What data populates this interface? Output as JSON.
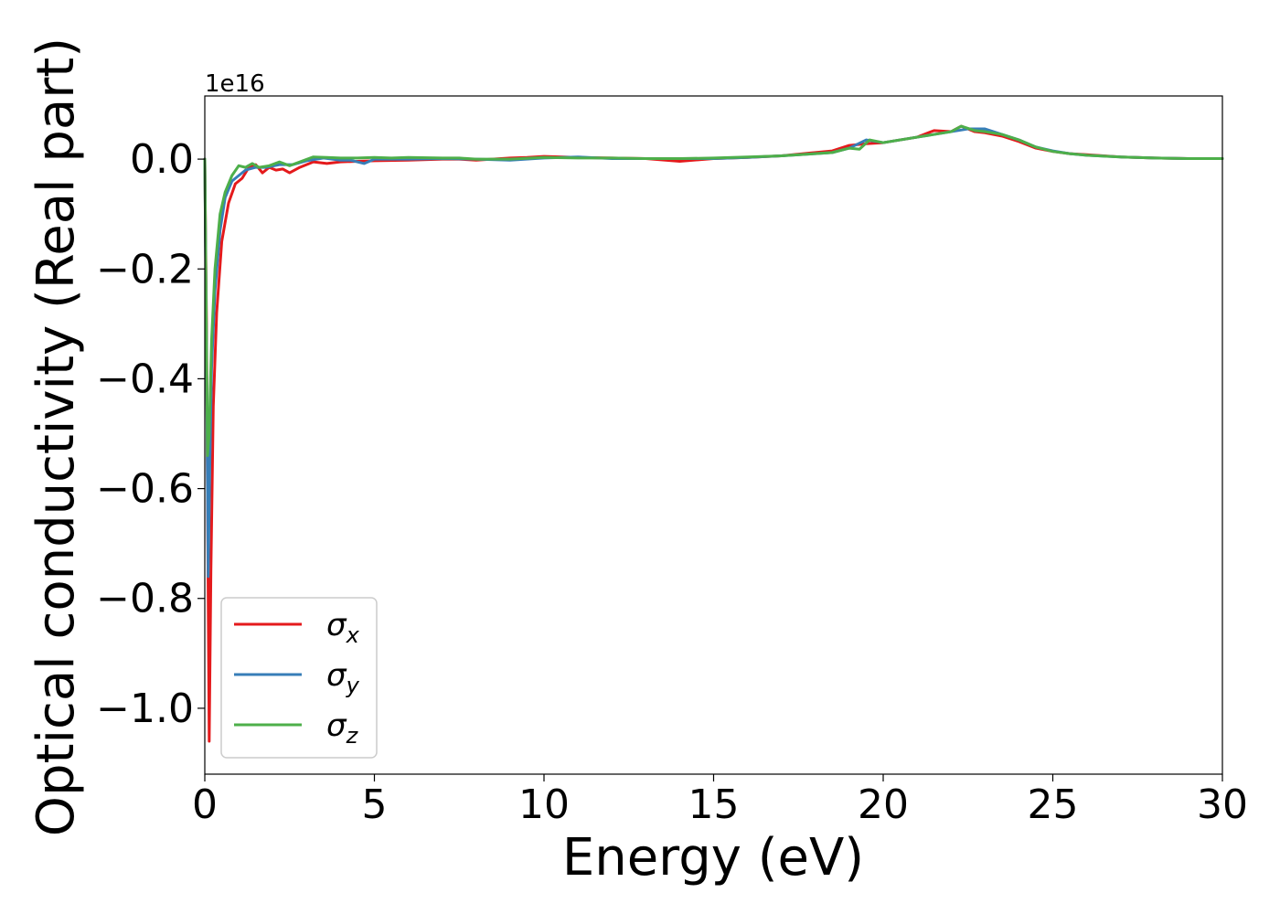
{
  "chart_data": {
    "type": "line",
    "xlabel": "Energy (eV)",
    "ylabel": "Optical conductivity (Real part)",
    "y_offset_label": "1e16",
    "xlim": [
      0,
      30
    ],
    "ylim": [
      -1.12,
      0.115
    ],
    "x_ticks": [
      0,
      5,
      10,
      15,
      20,
      25,
      30
    ],
    "x_tick_labels": [
      "0",
      "5",
      "10",
      "15",
      "20",
      "25",
      "30"
    ],
    "y_ticks": [
      0.0,
      -0.2,
      -0.4,
      -0.6,
      -0.8,
      -1.0
    ],
    "y_tick_labels": [
      "0.0",
      "−0.2",
      "−0.4",
      "−0.6",
      "−0.8",
      "−1.0"
    ],
    "grid": false,
    "legend_position": "lower-left",
    "series": [
      {
        "name": "σx",
        "name_symbol": "σ",
        "name_subscript": "x",
        "color": "#e41a1c",
        "points": [
          [
            0,
            0
          ],
          [
            0.05,
            -0.3
          ],
          [
            0.1,
            -0.8
          ],
          [
            0.13,
            -1.06
          ],
          [
            0.18,
            -0.75
          ],
          [
            0.25,
            -0.45
          ],
          [
            0.35,
            -0.28
          ],
          [
            0.5,
            -0.15
          ],
          [
            0.7,
            -0.08
          ],
          [
            0.9,
            -0.045
          ],
          [
            1.1,
            -0.035
          ],
          [
            1.3,
            -0.015
          ],
          [
            1.5,
            -0.01
          ],
          [
            1.7,
            -0.025
          ],
          [
            1.9,
            -0.015
          ],
          [
            2.1,
            -0.02
          ],
          [
            2.3,
            -0.018
          ],
          [
            2.5,
            -0.025
          ],
          [
            2.8,
            -0.015
          ],
          [
            3.2,
            -0.005
          ],
          [
            3.6,
            -0.008
          ],
          [
            4.0,
            -0.005
          ],
          [
            4.5,
            -0.004
          ],
          [
            5,
            -0.003
          ],
          [
            6,
            -0.002
          ],
          [
            7,
            0
          ],
          [
            7.5,
            0
          ],
          [
            8,
            -0.002
          ],
          [
            9,
            0.002
          ],
          [
            9.5,
            0.003
          ],
          [
            10,
            0.005
          ],
          [
            11,
            0.003
          ],
          [
            12,
            0.002
          ],
          [
            13,
            0.001
          ],
          [
            14,
            -0.004
          ],
          [
            15,
            0.001
          ],
          [
            16,
            0.003
          ],
          [
            17,
            0.006
          ],
          [
            18,
            0.012
          ],
          [
            18.5,
            0.015
          ],
          [
            19,
            0.025
          ],
          [
            19.5,
            0.028
          ],
          [
            20,
            0.03
          ],
          [
            20.5,
            0.035
          ],
          [
            21,
            0.04
          ],
          [
            21.5,
            0.052
          ],
          [
            22,
            0.05
          ],
          [
            22.3,
            0.06
          ],
          [
            22.7,
            0.05
          ],
          [
            23,
            0.048
          ],
          [
            23.5,
            0.042
          ],
          [
            24,
            0.032
          ],
          [
            24.5,
            0.02
          ],
          [
            25,
            0.014
          ],
          [
            25.5,
            0.01
          ],
          [
            26,
            0.008
          ],
          [
            27,
            0.004
          ],
          [
            28,
            0.002
          ],
          [
            29,
            0.001
          ],
          [
            30,
            0.001
          ]
        ]
      },
      {
        "name": "σy",
        "name_symbol": "σ",
        "name_subscript": "y",
        "color": "#377eb8",
        "points": [
          [
            0,
            0
          ],
          [
            0.05,
            -0.35
          ],
          [
            0.1,
            -0.76
          ],
          [
            0.15,
            -0.55
          ],
          [
            0.2,
            -0.38
          ],
          [
            0.3,
            -0.24
          ],
          [
            0.45,
            -0.13
          ],
          [
            0.6,
            -0.07
          ],
          [
            0.8,
            -0.04
          ],
          [
            1.0,
            -0.03
          ],
          [
            1.2,
            -0.02
          ],
          [
            1.5,
            -0.015
          ],
          [
            1.8,
            -0.015
          ],
          [
            2.2,
            -0.01
          ],
          [
            2.6,
            -0.01
          ],
          [
            3.0,
            -0.003
          ],
          [
            3.5,
            0.002
          ],
          [
            4.0,
            -0.002
          ],
          [
            4.3,
            -0.002
          ],
          [
            4.7,
            -0.008
          ],
          [
            5,
            0
          ],
          [
            6,
            0
          ],
          [
            7,
            0.001
          ],
          [
            8,
            0
          ],
          [
            9,
            -0.002
          ],
          [
            10,
            0.002
          ],
          [
            11,
            0.004
          ],
          [
            12,
            0.001
          ],
          [
            13,
            0.001
          ],
          [
            14,
            0.001
          ],
          [
            15,
            0.001
          ],
          [
            16,
            0.003
          ],
          [
            17,
            0.006
          ],
          [
            18,
            0.01
          ],
          [
            18.5,
            0.012
          ],
          [
            19,
            0.02
          ],
          [
            19.5,
            0.035
          ],
          [
            20,
            0.03
          ],
          [
            20.5,
            0.035
          ],
          [
            21,
            0.04
          ],
          [
            21.5,
            0.045
          ],
          [
            22,
            0.05
          ],
          [
            22.5,
            0.055
          ],
          [
            23,
            0.055
          ],
          [
            23.5,
            0.045
          ],
          [
            24,
            0.035
          ],
          [
            24.5,
            0.022
          ],
          [
            25,
            0.015
          ],
          [
            25.5,
            0.01
          ],
          [
            26,
            0.007
          ],
          [
            27,
            0.004
          ],
          [
            28,
            0.002
          ],
          [
            29,
            0.001
          ],
          [
            30,
            0.001
          ]
        ]
      },
      {
        "name": "σz",
        "name_symbol": "σ",
        "name_subscript": "z",
        "color": "#4daf4a",
        "points": [
          [
            0,
            0
          ],
          [
            0.03,
            -0.2
          ],
          [
            0.08,
            -0.54
          ],
          [
            0.13,
            -0.5
          ],
          [
            0.2,
            -0.33
          ],
          [
            0.3,
            -0.2
          ],
          [
            0.45,
            -0.1
          ],
          [
            0.6,
            -0.06
          ],
          [
            0.8,
            -0.03
          ],
          [
            1.0,
            -0.012
          ],
          [
            1.2,
            -0.015
          ],
          [
            1.4,
            -0.008
          ],
          [
            1.6,
            -0.015
          ],
          [
            1.9,
            -0.012
          ],
          [
            2.2,
            -0.005
          ],
          [
            2.5,
            -0.012
          ],
          [
            2.8,
            -0.005
          ],
          [
            3.2,
            0.004
          ],
          [
            3.6,
            0.003
          ],
          [
            4.0,
            0.002
          ],
          [
            4.5,
            0.002
          ],
          [
            5,
            0.003
          ],
          [
            5.5,
            0.002
          ],
          [
            6,
            0.003
          ],
          [
            7,
            0.002
          ],
          [
            7.5,
            0.002
          ],
          [
            8,
            0
          ],
          [
            9,
            0
          ],
          [
            10,
            0.003
          ],
          [
            11,
            0.002
          ],
          [
            12,
            0.002
          ],
          [
            13,
            0.001
          ],
          [
            14,
            0.001
          ],
          [
            15,
            0.002
          ],
          [
            16,
            0.004
          ],
          [
            17,
            0.006
          ],
          [
            18,
            0.01
          ],
          [
            18.5,
            0.012
          ],
          [
            19,
            0.02
          ],
          [
            19.3,
            0.018
          ],
          [
            19.6,
            0.035
          ],
          [
            20,
            0.03
          ],
          [
            20.5,
            0.035
          ],
          [
            21,
            0.04
          ],
          [
            21.5,
            0.045
          ],
          [
            22,
            0.05
          ],
          [
            22.3,
            0.06
          ],
          [
            22.7,
            0.052
          ],
          [
            23,
            0.05
          ],
          [
            23.5,
            0.045
          ],
          [
            24,
            0.035
          ],
          [
            24.5,
            0.022
          ],
          [
            25,
            0.014
          ],
          [
            25.5,
            0.01
          ],
          [
            26,
            0.007
          ],
          [
            27,
            0.004
          ],
          [
            28,
            0.002
          ],
          [
            29,
            0.001
          ],
          [
            30,
            0.001
          ]
        ]
      }
    ]
  }
}
